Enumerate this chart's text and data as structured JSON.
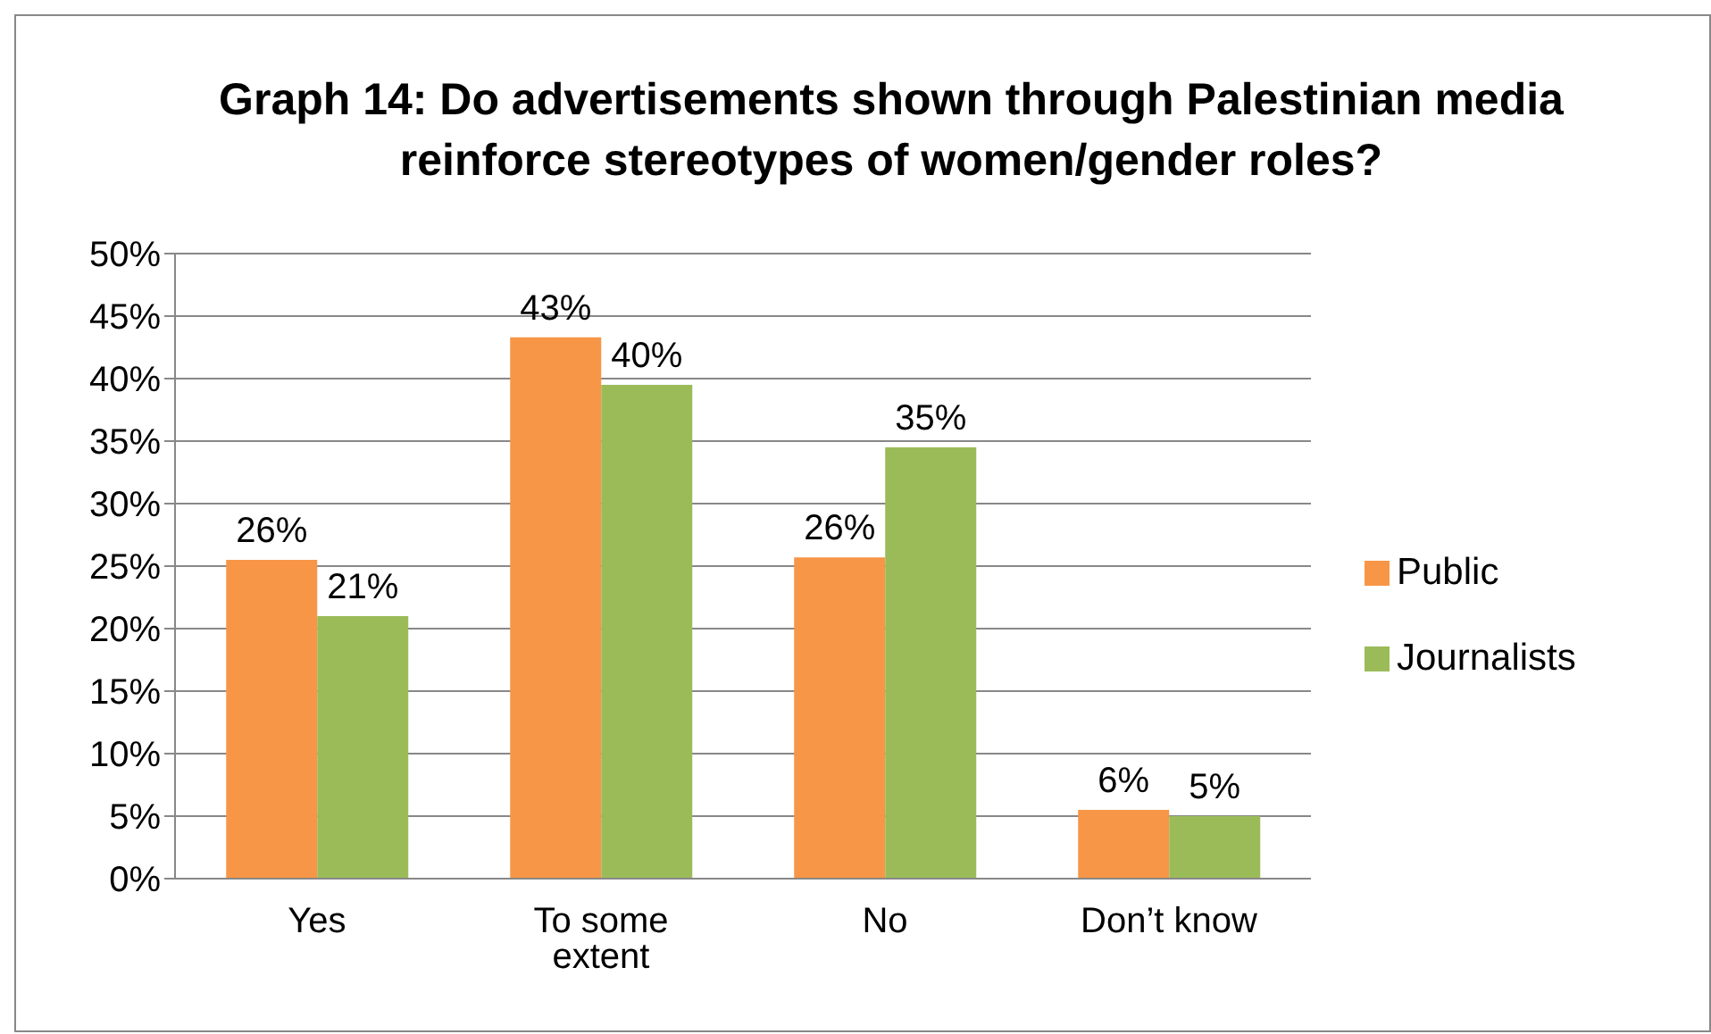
{
  "chart_data": {
    "type": "bar",
    "title": "Graph 14: Do advertisements shown through Palestinian media reinforce stereotypes of women/gender roles?",
    "categories": [
      "Yes",
      "To some extent",
      "No",
      "Don’t know"
    ],
    "series": [
      {
        "name": "Public",
        "color": "#f79646",
        "values": [
          25.5,
          43.3,
          25.7,
          5.5
        ],
        "value_labels": [
          "26%",
          "43%",
          "26%",
          "6%"
        ]
      },
      {
        "name": "Journalists",
        "color": "#9bbb59",
        "values": [
          21,
          39.5,
          34.5,
          5
        ],
        "value_labels": [
          "21%",
          "40%",
          "35%",
          "5%"
        ]
      }
    ],
    "ylim": [
      0,
      50
    ],
    "yticks": [
      {
        "value": 0,
        "label": "0%"
      },
      {
        "value": 5,
        "label": "5%"
      },
      {
        "value": 10,
        "label": "10%"
      },
      {
        "value": 15,
        "label": "15%"
      },
      {
        "value": 20,
        "label": "20%"
      },
      {
        "value": 25,
        "label": "25%"
      },
      {
        "value": 30,
        "label": "30%"
      },
      {
        "value": 35,
        "label": "35%"
      },
      {
        "value": 40,
        "label": "40%"
      },
      {
        "value": 45,
        "label": "45%"
      },
      {
        "value": 50,
        "label": "50%"
      }
    ],
    "grid": "y",
    "legend": "right"
  }
}
